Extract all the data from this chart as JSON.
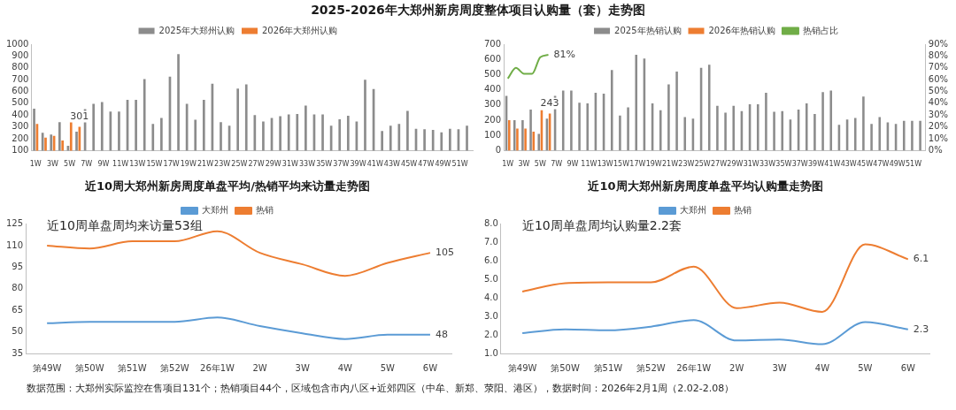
{
  "chart_data": [
    {
      "type": "bar",
      "title": "2025-2026年大郑州新房周度整体项目认购量（套）走势图",
      "categories": [
        "1W",
        null,
        "3W",
        null,
        "5W",
        null,
        "7W",
        null,
        "9W",
        null,
        "11W",
        null,
        "13W",
        null,
        "15W",
        null,
        "17W",
        null,
        "19W",
        null,
        "21W",
        null,
        "23W",
        null,
        "25W",
        null,
        "27W",
        null,
        "29W",
        null,
        "31W",
        null,
        "33W",
        null,
        "35W",
        null,
        "37W",
        null,
        "39W",
        null,
        "41W",
        null,
        "43W",
        null,
        "45W",
        null,
        "47W",
        null,
        "49W",
        null,
        "51W",
        null
      ],
      "ylim": [
        100,
        1000
      ],
      "yticks": [
        100,
        200,
        300,
        400,
        500,
        600,
        700,
        800,
        900,
        1000
      ],
      "grid": false,
      "legend": "top",
      "series": [
        {
          "name": "2025年大郑州认购",
          "color": "#8c8c8c",
          "values": [
            455,
            250,
            235,
            340,
            140,
            260,
            450,
            495,
            510,
            430,
            430,
            530,
            530,
            705,
            325,
            375,
            725,
            915,
            495,
            360,
            530,
            665,
            340,
            310,
            625,
            660,
            400,
            345,
            375,
            390,
            405,
            410,
            480,
            405,
            405,
            310,
            365,
            395,
            345,
            700,
            620,
            265,
            310,
            325,
            435,
            285,
            280,
            275,
            255,
            285,
            280,
            310
          ]
        },
        {
          "name": "2026年大郑州认购",
          "color": "#ed7d31",
          "values": [
            325,
            210,
            225,
            185,
            345,
            301,
            null,
            null,
            null,
            null,
            null,
            null,
            null,
            null,
            null,
            null,
            null,
            null,
            null,
            null,
            null,
            null,
            null,
            null,
            null,
            null,
            null,
            null,
            null,
            null,
            null,
            null,
            null,
            null,
            null,
            null,
            null,
            null,
            null,
            null,
            null,
            null,
            null,
            null,
            null,
            null,
            null,
            null,
            null,
            null,
            null,
            null
          ],
          "value_labels": [
            null,
            null,
            null,
            null,
            null,
            "301",
            null,
            null,
            null,
            null,
            null,
            null,
            null,
            null,
            null,
            null,
            null,
            null,
            null,
            null,
            null,
            null,
            null,
            null,
            null,
            null,
            null,
            null,
            null,
            null,
            null,
            null,
            null,
            null,
            null,
            null,
            null,
            null,
            null,
            null,
            null,
            null,
            null,
            null,
            null,
            null,
            null,
            null,
            null,
            null,
            null,
            null
          ]
        }
      ]
    },
    {
      "type": "bar",
      "categories": [
        "1W",
        null,
        "3W",
        null,
        "5W",
        null,
        "7W",
        null,
        "9W",
        null,
        "11W",
        null,
        "13W",
        null,
        "15W",
        null,
        "17W",
        null,
        "19W",
        null,
        "21W",
        null,
        "23W",
        null,
        "25W",
        null,
        "27W",
        null,
        "29W",
        null,
        "31W",
        null,
        "33W",
        null,
        "35W",
        null,
        "37W",
        null,
        "39W",
        null,
        "41W",
        null,
        "43W",
        null,
        "45W",
        null,
        "47W",
        null,
        "49W",
        null,
        "51W",
        null
      ],
      "ylim": [
        0,
        700
      ],
      "yticks": [
        0,
        100,
        200,
        300,
        400,
        500,
        600,
        700
      ],
      "y2lim": [
        0,
        90
      ],
      "y2ticks": [
        {
          "value": 0,
          "label": "0%"
        },
        {
          "value": 10,
          "label": "10%"
        },
        {
          "value": 20,
          "label": "20%"
        },
        {
          "value": 30,
          "label": "30%"
        },
        {
          "value": 40,
          "label": "40%"
        },
        {
          "value": 50,
          "label": "50%"
        },
        {
          "value": 60,
          "label": "60%"
        },
        {
          "value": 70,
          "label": "70%"
        },
        {
          "value": 80,
          "label": "80%"
        },
        {
          "value": 90,
          "label": "90%"
        }
      ],
      "grid": false,
      "legend": "top",
      "series": [
        {
          "name": "2025年热销认购",
          "color": "#8c8c8c",
          "values": [
            360,
            200,
            200,
            270,
            110,
            210,
            360,
            395,
            395,
            315,
            310,
            380,
            375,
            530,
            230,
            285,
            630,
            605,
            310,
            265,
            435,
            520,
            220,
            210,
            545,
            565,
            295,
            250,
            295,
            260,
            305,
            305,
            380,
            255,
            260,
            205,
            270,
            310,
            240,
            385,
            395,
            170,
            205,
            215,
            355,
            175,
            220,
            185,
            175,
            195,
            195,
            195
          ]
        },
        {
          "name": "2026年热销认购",
          "color": "#ed7d31",
          "values": [
            200,
            145,
            145,
            125,
            265,
            243,
            null,
            null,
            null,
            null,
            null,
            null,
            null,
            null,
            null,
            null,
            null,
            null,
            null,
            null,
            null,
            null,
            null,
            null,
            null,
            null,
            null,
            null,
            null,
            null,
            null,
            null,
            null,
            null,
            null,
            null,
            null,
            null,
            null,
            null,
            null,
            null,
            null,
            null,
            null,
            null,
            null,
            null,
            null,
            null,
            null,
            null
          ],
          "value_labels": [
            null,
            null,
            null,
            null,
            null,
            "243",
            null,
            null,
            null,
            null,
            null,
            null,
            null,
            null,
            null,
            null,
            null,
            null,
            null,
            null,
            null,
            null,
            null,
            null,
            null,
            null,
            null,
            null,
            null,
            null,
            null,
            null,
            null,
            null,
            null,
            null,
            null,
            null,
            null,
            null,
            null,
            null,
            null,
            null,
            null,
            null,
            null,
            null,
            null,
            null,
            null,
            null
          ]
        },
        {
          "name": "热销占比",
          "type": "line",
          "axis": "y2",
          "marker": "none",
          "line_style": "solid",
          "color": "#70ad47",
          "values": [
            61,
            70,
            65,
            65,
            79,
            81,
            null,
            null,
            null,
            null,
            null,
            null,
            null,
            null,
            null,
            null,
            null,
            null,
            null,
            null,
            null,
            null,
            null,
            null,
            null,
            null,
            null,
            null,
            null,
            null,
            null,
            null,
            null,
            null,
            null,
            null,
            null,
            null,
            null,
            null,
            null,
            null,
            null,
            null,
            null,
            null,
            null,
            null,
            null,
            null,
            null,
            null
          ],
          "value_labels": [
            null,
            null,
            null,
            null,
            null,
            "81%",
            null,
            null,
            null,
            null,
            null,
            null,
            null,
            null,
            null,
            null,
            null,
            null,
            null,
            null,
            null,
            null,
            null,
            null,
            null,
            null,
            null,
            null,
            null,
            null,
            null,
            null,
            null,
            null,
            null,
            null,
            null,
            null,
            null,
            null,
            null,
            null,
            null,
            null,
            null,
            null,
            null,
            null,
            null,
            null,
            null,
            null
          ]
        }
      ]
    },
    {
      "type": "line",
      "title": "近10周大郑州新房周度单盘平均/热销平均来访量走势图",
      "categories": [
        "第49W",
        "第50W",
        "第51W",
        "第52W",
        "26年1W",
        "2W",
        "3W",
        "4W",
        "5W",
        "6W"
      ],
      "ylim": [
        35,
        125
      ],
      "yticks": [
        35,
        50,
        65,
        80,
        95,
        110,
        125
      ],
      "grid": false,
      "legend": "top",
      "marker": "none",
      "line_style": "solid",
      "annotations": [
        "近10周单盘周均来访量53组",
        "数据范围：大郑州实际监控在售项目131个；热销项目44个，区域包含市内八区+近郊四区（中牟、新郑、荥阳、港区），数据时间：2026年2月1周（2.02-2.08）"
      ],
      "series": [
        {
          "name": "大郑州",
          "color": "#5b9bd5",
          "values": [
            56,
            57,
            57,
            57,
            60,
            54,
            49,
            45,
            48,
            48
          ],
          "value_labels": [
            null,
            null,
            null,
            null,
            null,
            null,
            null,
            null,
            null,
            "48"
          ]
        },
        {
          "name": "热销",
          "color": "#ed7d31",
          "values": [
            110,
            108,
            113,
            113,
            120,
            105,
            97,
            89,
            98,
            105
          ],
          "value_labels": [
            null,
            null,
            null,
            null,
            null,
            null,
            null,
            null,
            null,
            "105"
          ]
        }
      ]
    },
    {
      "type": "line",
      "title": "近10周大郑州新房周度单盘平均认购量走势图",
      "categories": [
        "第49W",
        "第50W",
        "第51W",
        "第52W",
        "26年1W",
        "2W",
        "3W",
        "4W",
        "5W",
        "6W"
      ],
      "ylim": [
        1,
        8
      ],
      "yticks": [
        {
          "value": 1,
          "label": "1.0"
        },
        {
          "value": 2,
          "label": "2.0"
        },
        {
          "value": 3,
          "label": "3.0"
        },
        {
          "value": 4,
          "label": "4.0"
        },
        {
          "value": 5,
          "label": "5.0"
        },
        {
          "value": 6,
          "label": "6.0"
        },
        {
          "value": 7,
          "label": "7.0"
        },
        {
          "value": 8,
          "label": "8.0"
        }
      ],
      "grid": false,
      "legend": "top",
      "marker": "none",
      "line_style": "solid",
      "annotations": [
        "近10周单盘周均认购量2.2套"
      ],
      "series": [
        {
          "name": "大郑州",
          "color": "#5b9bd5",
          "values": [
            2.1,
            2.3,
            2.25,
            2.45,
            2.8,
            1.7,
            1.75,
            1.5,
            2.7,
            2.3
          ],
          "value_labels": [
            null,
            null,
            null,
            null,
            null,
            null,
            null,
            null,
            null,
            "2.3"
          ]
        },
        {
          "name": "热销",
          "color": "#ed7d31",
          "values": [
            4.35,
            4.8,
            4.85,
            4.85,
            5.7,
            3.45,
            3.75,
            3.25,
            6.9,
            6.1
          ],
          "value_labels": [
            null,
            null,
            null,
            null,
            null,
            null,
            null,
            null,
            null,
            "6.1"
          ]
        }
      ]
    }
  ]
}
